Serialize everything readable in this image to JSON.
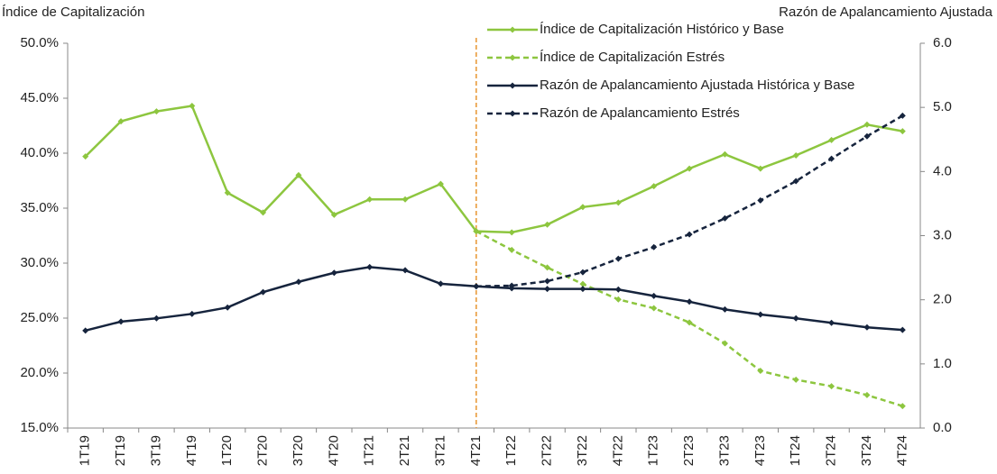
{
  "chart_data": {
    "type": "line",
    "y_title": "Índice de Capitalización",
    "y2_title": "Razón de Apalancamiento Ajustada",
    "categories": [
      "1T19",
      "2T19",
      "3T19",
      "4T19",
      "1T20",
      "2T20",
      "3T20",
      "4T20",
      "1T21",
      "2T21",
      "3T21",
      "4T21",
      "1T22",
      "2T22",
      "3T22",
      "4T22",
      "1T23",
      "2T23",
      "3T23",
      "4T23",
      "1T24",
      "2T24",
      "3T24",
      "4T24"
    ],
    "ylim": [
      15,
      50
    ],
    "yticks": [
      {
        "value": 15,
        "label": "15.0%"
      },
      {
        "value": 20,
        "label": "20.0%"
      },
      {
        "value": 25,
        "label": "25.0%"
      },
      {
        "value": 30,
        "label": "30.0%"
      },
      {
        "value": 35,
        "label": "35.0%"
      },
      {
        "value": 40,
        "label": "40.0%"
      },
      {
        "value": 45,
        "label": "45.0%"
      },
      {
        "value": 50,
        "label": "50.0%"
      }
    ],
    "y2lim": [
      0,
      6
    ],
    "y2ticks": [
      {
        "value": 0,
        "label": "0.0"
      },
      {
        "value": 1,
        "label": "1.0"
      },
      {
        "value": 2,
        "label": "2.0"
      },
      {
        "value": 3,
        "label": "3.0"
      },
      {
        "value": 4,
        "label": "4.0"
      },
      {
        "value": 5,
        "label": "5.0"
      },
      {
        "value": 6,
        "label": "6.0"
      }
    ],
    "vline": {
      "x": "4T21",
      "color": "#e8952f"
    },
    "series": [
      {
        "name": "Índice de Capitalización Histórico y Base",
        "color": "#8dc63f",
        "dashed": false,
        "values": [
          39.7,
          42.9,
          43.8,
          44.3,
          36.4,
          34.6,
          38.0,
          34.4,
          35.8,
          35.8,
          37.2,
          32.9,
          32.8,
          33.5,
          35.1,
          35.5,
          37.0,
          38.6,
          39.9,
          38.6,
          39.8,
          41.2,
          42.6,
          42.0
        ]
      },
      {
        "name": "Índice de Capitalización Estrés",
        "color": "#8dc63f",
        "dashed": true,
        "values": [
          null,
          null,
          null,
          null,
          null,
          null,
          null,
          null,
          null,
          null,
          null,
          32.9,
          31.2,
          29.6,
          28.1,
          26.7,
          25.9,
          24.6,
          22.7,
          20.2,
          19.4,
          18.8,
          18.0,
          17.0
        ]
      },
      {
        "name": "Razón de Apalancamiento Ajustada Histórica y Base",
        "color": "#16243d",
        "dashed": false,
        "axis": "y2",
        "values": [
          1.52,
          1.66,
          1.71,
          1.78,
          1.88,
          2.12,
          2.28,
          2.42,
          2.51,
          2.46,
          2.25,
          2.21,
          2.18,
          2.17,
          2.17,
          2.16,
          2.06,
          1.97,
          1.85,
          1.77,
          1.71,
          1.64,
          1.57,
          1.53
        ]
      },
      {
        "name": "Razón de Apalancamiento Estrés",
        "color": "#16243d",
        "dashed": true,
        "axis": "y2",
        "values": [
          null,
          null,
          null,
          null,
          null,
          null,
          null,
          null,
          null,
          null,
          null,
          2.21,
          2.22,
          2.29,
          2.43,
          2.64,
          2.82,
          3.02,
          3.27,
          3.55,
          3.85,
          4.2,
          4.55,
          4.87
        ]
      }
    ]
  }
}
